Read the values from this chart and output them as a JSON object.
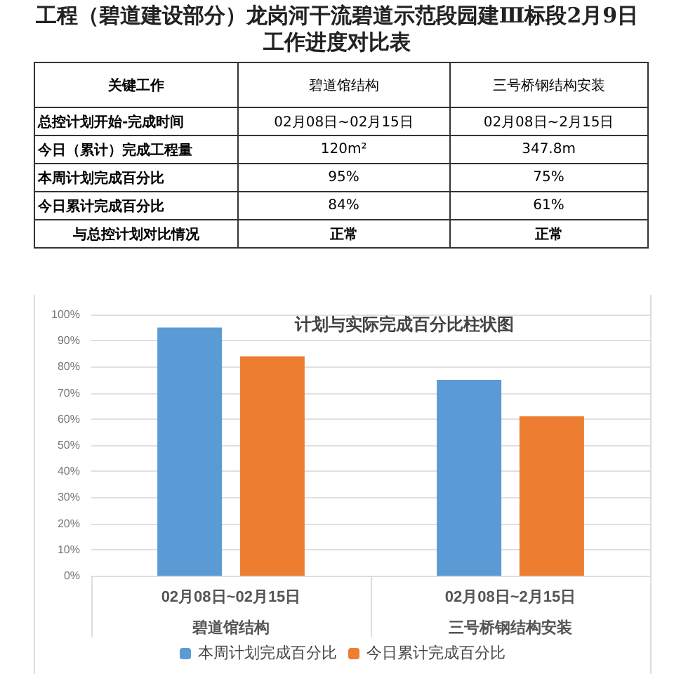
{
  "chart_data": [
    {
      "type": "other",
      "title": "工程（碧道建设部分）龙岗河干流碧道示范段园建Ⅲ标段2月9日工作进度对比表",
      "annotations": [
        "关键工作",
        "碧道馆结构",
        "三号桥钢结构安装",
        "总控计划开始-完成时间",
        "02月08日~02月15日",
        "02月08日~2月15日",
        "今日（累计）完成工程量",
        "120m²",
        "347.8m",
        "本周计划完成百分比",
        "95%",
        "75%",
        "今日累计完成百分比",
        "84%",
        "61%",
        "与总控计划对比情况",
        "正常",
        "正常"
      ]
    },
    {
      "type": "bar",
      "title": "计划与实际完成百分比柱状图",
      "categories": [
        "碧道馆结构",
        "三号桥钢结构安装"
      ],
      "annotations": [
        "02月08日~02月15日",
        "02月08日~2月15日"
      ],
      "series": [
        {
          "name": "本周计划完成百分比",
          "color": "#5b9bd5",
          "values": [
            95,
            75
          ]
        },
        {
          "name": "今日累计完成百分比",
          "color": "#ed7d31",
          "values": [
            84,
            61
          ]
        }
      ],
      "ylim": [
        0,
        100
      ],
      "yticks": [
        {
          "value": 0,
          "label": "0%"
        },
        {
          "value": 10,
          "label": "10%"
        },
        {
          "value": 20,
          "label": "20%"
        },
        {
          "value": 30,
          "label": "30%"
        },
        {
          "value": 40,
          "label": "40%"
        },
        {
          "value": 50,
          "label": "50%"
        },
        {
          "value": 60,
          "label": "60%"
        },
        {
          "value": 70,
          "label": "70%"
        },
        {
          "value": 80,
          "label": "80%"
        },
        {
          "value": 90,
          "label": "90%"
        },
        {
          "value": 100,
          "label": "100%"
        }
      ],
      "grid": "y",
      "legend": "bottom"
    }
  ]
}
